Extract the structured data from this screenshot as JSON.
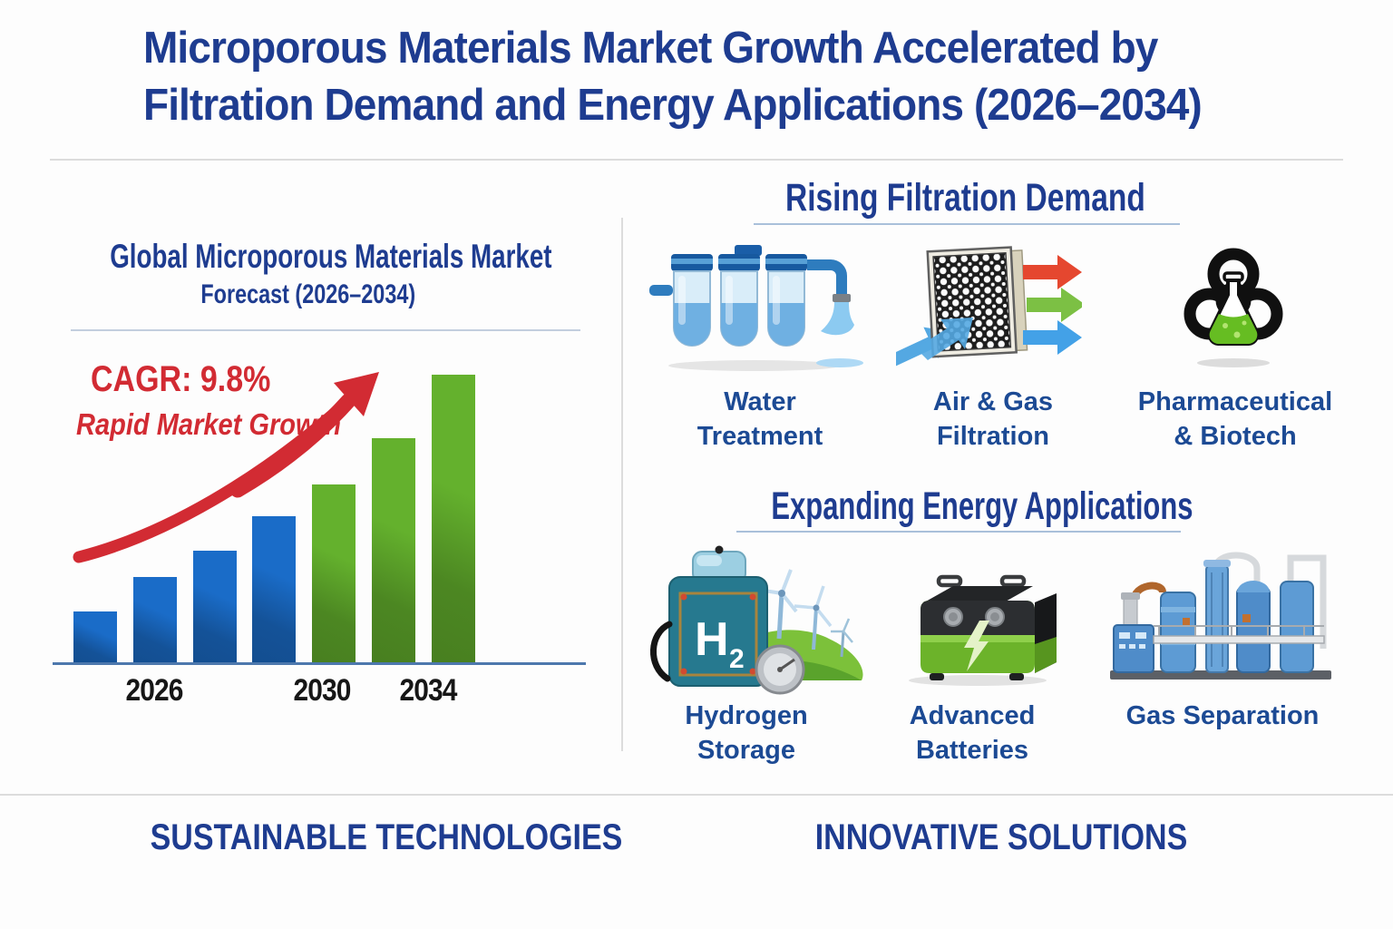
{
  "header": {
    "title_line1": "Microporous Materials Market Growth Accelerated by",
    "title_line2": "Filtration Demand and Energy Applications (2026–2034)"
  },
  "left_panel": {
    "heading_line1": "Global Microporous Materials Market",
    "heading_line2": "Forecast (2026–2034)",
    "cagr_label": "CAGR: 9.8%",
    "growth_label": "Rapid Market Growth"
  },
  "chart_data": {
    "type": "bar",
    "title": "Global Microporous Materials Market Forecast (2026–2034)",
    "cagr_percent": 9.8,
    "annotations": [
      "CAGR: 9.8%",
      "Rapid Market Growth"
    ],
    "xlabel": "",
    "ylabel": "",
    "grid": false,
    "legend": null,
    "bar_count": 7,
    "values_pct_of_max": [
      18,
      30,
      39,
      51,
      62,
      78,
      100
    ],
    "value_note": "values estimated from relative bar heights, percent of tallest 2034 bar",
    "bar_colors_by_index": [
      "#1a6cc8",
      "#1a6cc8",
      "#1a6cc8",
      "#1a6cc8",
      "#64b12d",
      "#64b12d",
      "#64b12d"
    ],
    "tick_labels": [
      {
        "bar_index": 1,
        "label": "2026"
      },
      {
        "bar_index": 4,
        "label": "2030"
      },
      {
        "bar_index": 6,
        "label": "2034"
      }
    ],
    "trend_arrow_color": "#d22b33",
    "axis_color": "#4d78ad"
  },
  "right_panel": {
    "filtration": {
      "heading": "Rising Filtration Demand",
      "items": [
        {
          "line1": "Water",
          "line2": "Treatment",
          "icon": "water-treatment-icon"
        },
        {
          "line1": "Air & Gas",
          "line2": "Filtration",
          "icon": "air-gas-filtration-icon"
        },
        {
          "line1": "Pharmaceutical",
          "line2": "& Biotech",
          "icon": "pharma-biotech-icon"
        }
      ]
    },
    "energy": {
      "heading": "Expanding Energy Applications",
      "items": [
        {
          "line1": "Hydrogen",
          "line2": "Storage",
          "icon": "hydrogen-storage-icon",
          "icon_text_main": "H",
          "icon_text_sub": "2"
        },
        {
          "line1": "Advanced",
          "line2": "Batteries",
          "icon": "advanced-batteries-icon"
        },
        {
          "line1": "Gas Separation",
          "line2": "",
          "icon": "gas-separation-icon"
        }
      ]
    }
  },
  "footer": {
    "left_label": "SUSTAINABLE TECHNOLOGIES",
    "right_label": "INNOVATIVE SOLUTIONS"
  },
  "palette": {
    "heading_blue": "#1e3c90",
    "caption_blue": "#1c4a94",
    "accent_red": "#d22b33",
    "bar_blue": "#1a6cc8",
    "bar_green": "#64b12d",
    "axis_blue": "#4d78ad"
  }
}
